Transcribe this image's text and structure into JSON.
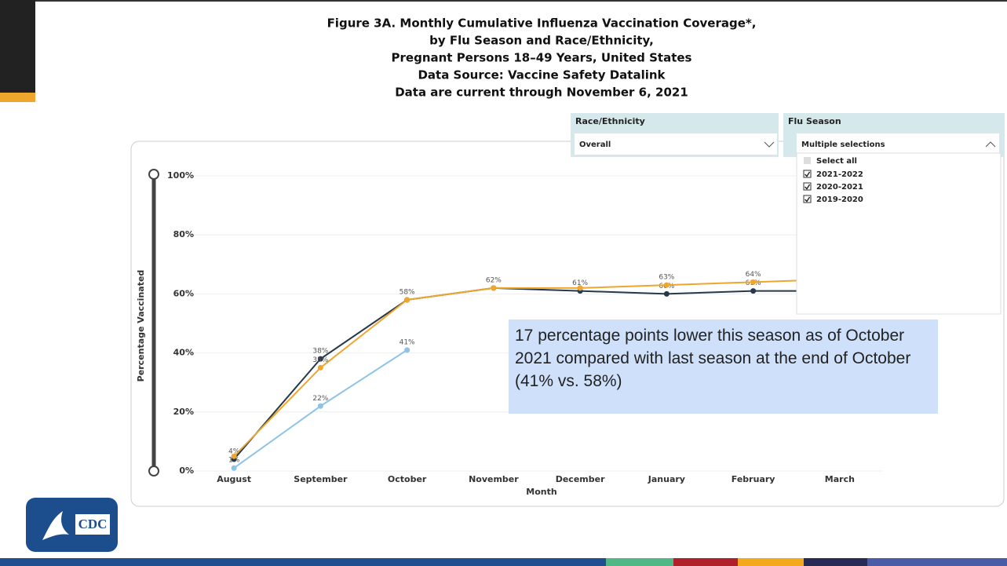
{
  "slide": {
    "logo_text": "CDC"
  },
  "filters": {
    "race_label": "Race/Ethnicity",
    "race_value": "Overall",
    "season_label": "Flu Season",
    "season_value": "Multiple selections",
    "select_all": "Select all"
  },
  "annotation": "17 percentage points lower this season as of October 2021 compared with last season at the end of October (41% vs. 58%)",
  "chart_data": {
    "type": "line",
    "title": [
      "Figure 3A. Monthly Cumulative Influenza Vaccination Coverage*,",
      "by Flu Season and Race/Ethnicity,",
      "Pregnant Persons 18–49 Years, United States",
      "Data Source: Vaccine Safety Datalink",
      "Data are current through November 6, 2021"
    ],
    "x_label": "Month",
    "y_label": "Percentage Vaccinated",
    "categories": [
      "August",
      "September",
      "October",
      "November",
      "December",
      "January",
      "February",
      "March"
    ],
    "ylim": [
      0,
      100
    ],
    "yticks": [
      {
        "value": 0,
        "label": "0%"
      },
      {
        "value": 20,
        "label": "20%"
      },
      {
        "value": 40,
        "label": "40%"
      },
      {
        "value": 60,
        "label": "60%"
      },
      {
        "value": 80,
        "label": "80%"
      },
      {
        "value": 100,
        "label": "100%"
      }
    ],
    "grid": true,
    "series": [
      {
        "name": "2021-2022",
        "color": "#8cc3e6",
        "values": [
          1,
          22,
          41,
          null,
          null,
          null,
          null,
          null
        ],
        "value_labels": [
          "1%",
          "22%",
          "41%",
          null,
          null,
          null,
          null,
          null
        ]
      },
      {
        "name": "2020-2021",
        "color": "#26394a",
        "values": [
          4,
          38,
          58,
          62,
          61,
          60,
          61,
          61
        ],
        "value_labels": [
          "4%",
          "38%",
          "58%",
          "62%",
          "61%",
          "60%",
          "61%",
          null
        ]
      },
      {
        "name": "2019-2020",
        "color": "#f0a62c",
        "values": [
          5,
          35,
          58,
          62,
          62,
          63,
          64,
          65
        ],
        "value_labels": [
          null,
          "35%",
          null,
          null,
          null,
          "63%",
          "64%",
          null
        ]
      }
    ]
  }
}
